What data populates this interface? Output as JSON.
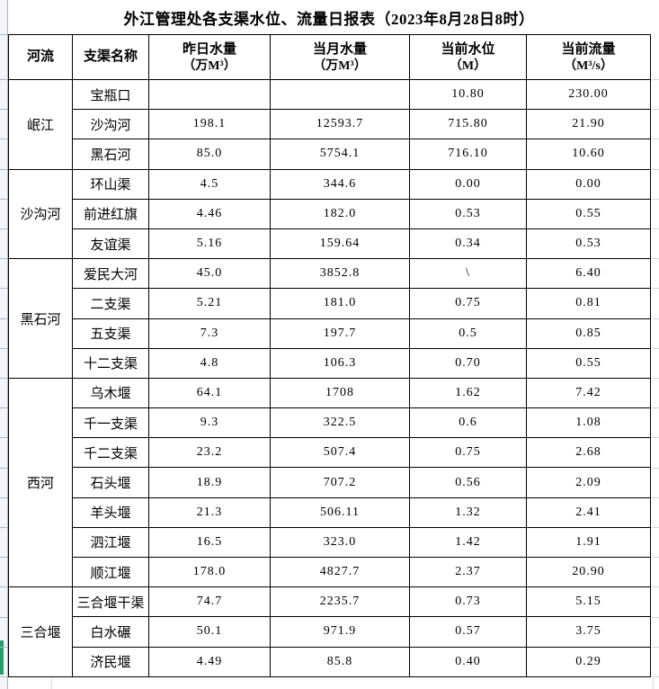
{
  "title": "外江管理处各支渠水位、流量日报表（2023年8月28日8时）",
  "table": {
    "columns": [
      {
        "label": "河流",
        "unit": ""
      },
      {
        "label": "支渠名称",
        "unit": ""
      },
      {
        "label": "昨日水量",
        "unit": "（万M³）"
      },
      {
        "label": "当月水量",
        "unit": "（万M³）"
      },
      {
        "label": "当前水位",
        "unit": "（M）"
      },
      {
        "label": "当前流量",
        "unit": "（M³/s）"
      }
    ],
    "groups": [
      {
        "river": "岷江",
        "rows": [
          {
            "name": "宝瓶口",
            "yesterday": "",
            "monthly": "",
            "level": "10.80",
            "flow": "230.00"
          },
          {
            "name": "沙沟河",
            "yesterday": "198.1",
            "monthly": "12593.7",
            "level": "715.80",
            "flow": "21.90"
          },
          {
            "name": "黑石河",
            "yesterday": "85.0",
            "monthly": "5754.1",
            "level": "716.10",
            "flow": "10.60"
          }
        ]
      },
      {
        "river": "沙沟河",
        "rows": [
          {
            "name": "环山渠",
            "yesterday": "4.5",
            "monthly": "344.6",
            "level": "0.00",
            "flow": "0.00"
          },
          {
            "name": "前进红旗",
            "yesterday": "4.46",
            "monthly": "182.0",
            "level": "0.53",
            "flow": "0.55"
          },
          {
            "name": "友谊渠",
            "yesterday": "5.16",
            "monthly": "159.64",
            "level": "0.34",
            "flow": "0.53"
          }
        ]
      },
      {
        "river": "黑石河",
        "rows": [
          {
            "name": "爱民大河",
            "yesterday": "45.0",
            "monthly": "3852.8",
            "level": "\\",
            "flow": "6.40"
          },
          {
            "name": "二支渠",
            "yesterday": "5.21",
            "monthly": "181.0",
            "level": "0.75",
            "flow": "0.81"
          },
          {
            "name": "五支渠",
            "yesterday": "7.3",
            "monthly": "197.7",
            "level": "0.5",
            "flow": "0.85"
          },
          {
            "name": "十二支渠",
            "yesterday": "4.8",
            "monthly": "106.3",
            "level": "0.70",
            "flow": "0.55"
          }
        ]
      },
      {
        "river": "西河",
        "rows": [
          {
            "name": "乌木堰",
            "yesterday": "64.1",
            "monthly": "1708",
            "monthly_middle": true,
            "level": "1.62",
            "flow": "7.42"
          },
          {
            "name": "千一支渠",
            "yesterday": "9.3",
            "monthly": "322.5",
            "level": "0.6",
            "flow": "1.08"
          },
          {
            "name": "千二支渠",
            "yesterday": "23.2",
            "monthly": "507.4",
            "level": "0.75",
            "flow": "2.68"
          },
          {
            "name": "石头堰",
            "yesterday": "18.9",
            "monthly": "707.2",
            "level": "0.56",
            "flow": "2.09"
          },
          {
            "name": "羊头堰",
            "yesterday": "21.3",
            "monthly": "506.11",
            "level": "1.32",
            "flow": "2.41"
          },
          {
            "name": "泗江堰",
            "yesterday": "16.5",
            "monthly": "323.0",
            "level": "1.42",
            "flow": "1.91"
          },
          {
            "name": "顺江堰",
            "yesterday": "178.0",
            "monthly": "4827.7",
            "level": "2.37",
            "flow": "20.90"
          }
        ]
      },
      {
        "river": "三合堰",
        "rows": [
          {
            "name": "三合堰干渠",
            "yesterday": "74.7",
            "monthly": "2235.7",
            "level": "0.73",
            "flow": "5.15"
          },
          {
            "name": "白水碾",
            "yesterday": "50.1",
            "monthly": "971.9",
            "level": "0.57",
            "flow": "3.75"
          },
          {
            "name": "济民堰",
            "yesterday": "4.49",
            "monthly": "85.8",
            "level": "0.40",
            "flow": "0.29"
          }
        ]
      }
    ]
  },
  "colors": {
    "selection_green": "#21a366",
    "rowheader_grid": "#a9b8cc",
    "table_border": "#000000",
    "background": "#ffffff"
  }
}
